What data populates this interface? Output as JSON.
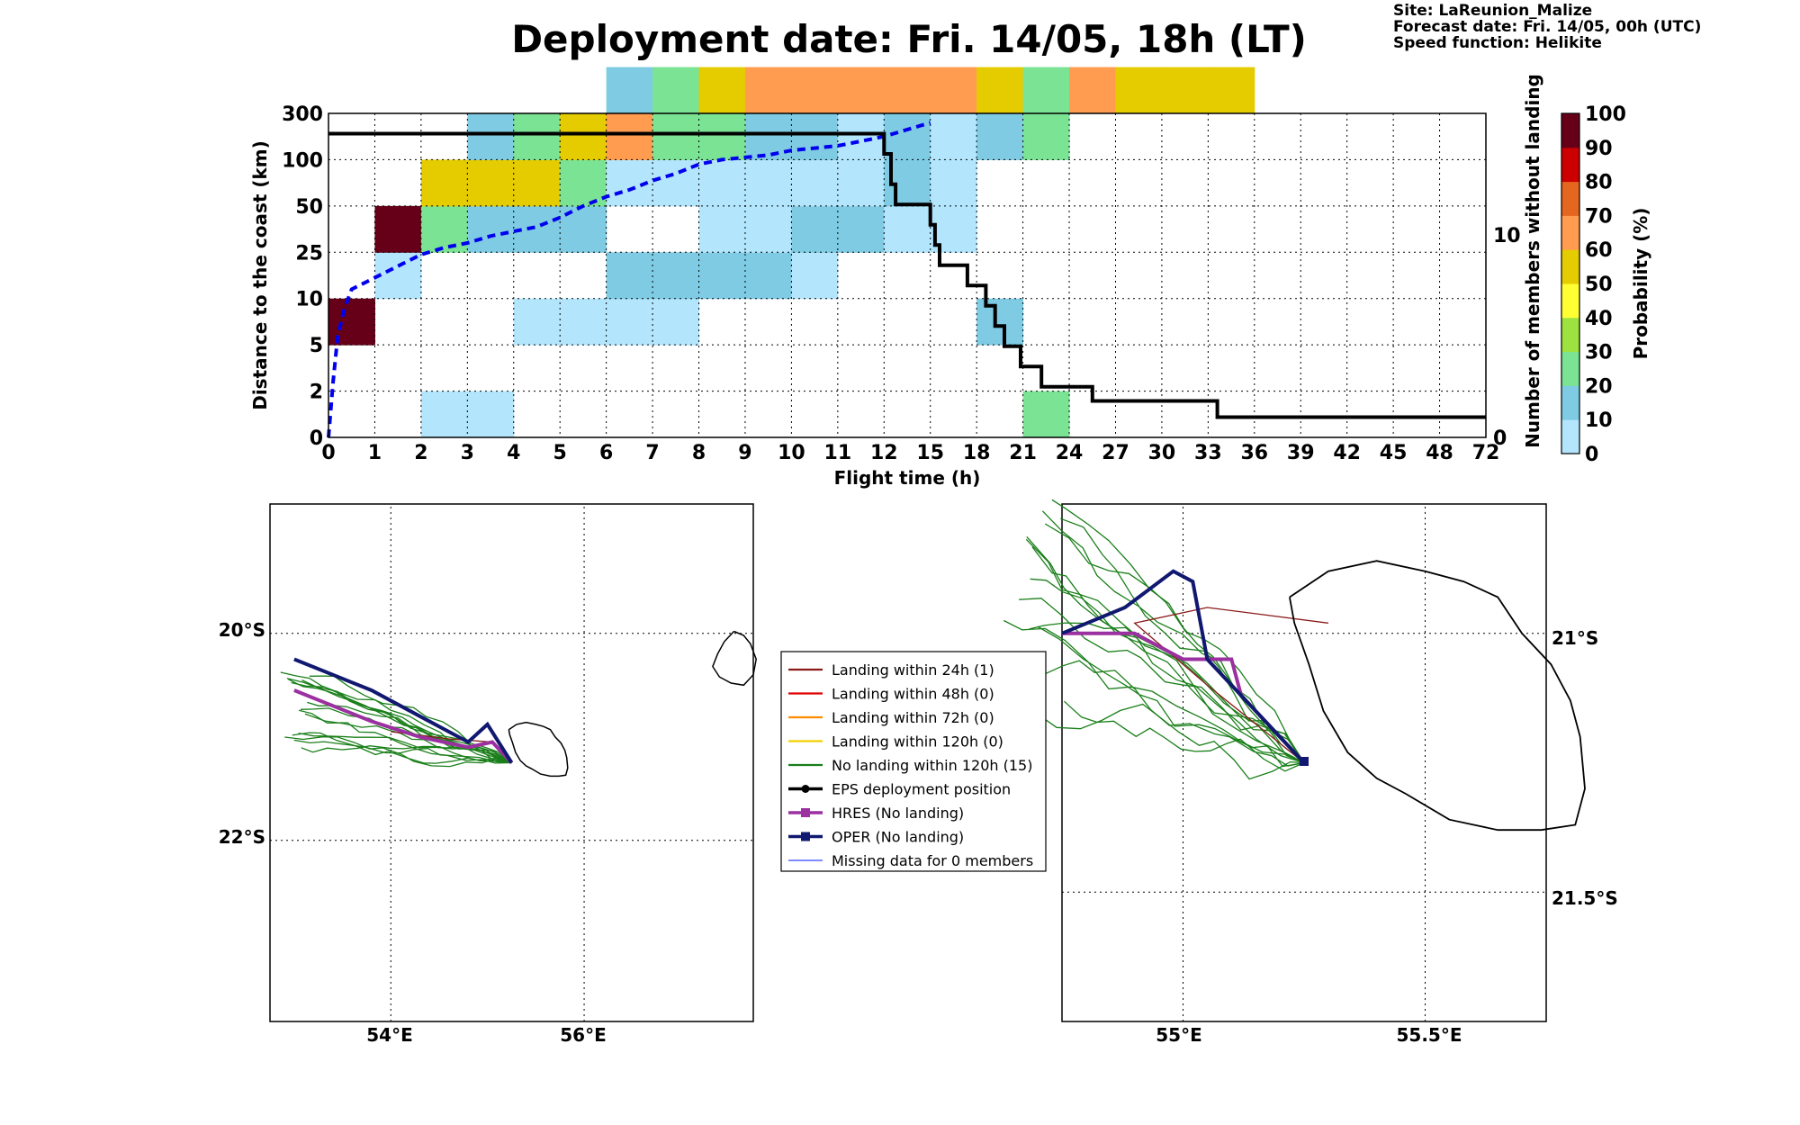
{
  "header": {
    "title": "Deployment date: Fri. 14/05, 18h (LT)",
    "info": [
      "Site: LaReunion_Malize",
      "Forecast date: Fri. 14/05, 00h (UTC)",
      "Speed function: Helikite"
    ]
  },
  "colors": {
    "scale": [
      "#b3e5fc",
      "#7ecbe3",
      "#7be394",
      "#9de23f",
      "#ffff33",
      "#e5cc00",
      "#ff9c50",
      "#e5661e",
      "#cc0000",
      "#660018"
    ],
    "median_line": "#0000ee",
    "members_line": "#000000",
    "land": "#000000"
  },
  "chart_data": [
    {
      "type": "heatmap",
      "xlabel": "Flight time (h)",
      "ylabel": "Distance to the coast (km)",
      "y2label": "Number of members without landing",
      "x_ticks": [
        "0",
        "1",
        "2",
        "3",
        "4",
        "5",
        "6",
        "7",
        "8",
        "9",
        "10",
        "11",
        "12",
        "15",
        "18",
        "21",
        "24",
        "27",
        "30",
        "33",
        "36",
        "39",
        "42",
        "45",
        "48",
        "72"
      ],
      "y_ticks": [
        "0",
        "2",
        "5",
        "10",
        "25",
        "50",
        "100",
        "300"
      ],
      "y2_ticks": [
        "0",
        "10"
      ],
      "y2_range": [
        0,
        16
      ],
      "colorbar": {
        "label": "Probability (%)",
        "ticks": [
          "0",
          "10",
          "20",
          "30",
          "40",
          "50",
          "60",
          "70",
          "80",
          "90",
          "100"
        ]
      },
      "cells": [
        {
          "x": 0,
          "y": 2,
          "p": 95
        },
        {
          "x": 1,
          "y": 3,
          "p": 5
        },
        {
          "x": 1,
          "y": 4,
          "p": 95
        },
        {
          "x": 2,
          "y": 0,
          "p": 5
        },
        {
          "x": 2,
          "y": 4,
          "p": 25
        },
        {
          "x": 2,
          "y": 5,
          "p": 55
        },
        {
          "x": 3,
          "y": 0,
          "p": 5
        },
        {
          "x": 3,
          "y": 4,
          "p": 15
        },
        {
          "x": 3,
          "y": 5,
          "p": 55
        },
        {
          "x": 3,
          "y": 6,
          "p": 15
        },
        {
          "x": 4,
          "y": 2,
          "p": 5
        },
        {
          "x": 4,
          "y": 4,
          "p": 15
        },
        {
          "x": 4,
          "y": 5,
          "p": 55
        },
        {
          "x": 4,
          "y": 6,
          "p": 20
        },
        {
          "x": 5,
          "y": 2,
          "p": 5
        },
        {
          "x": 5,
          "y": 4,
          "p": 15
        },
        {
          "x": 5,
          "y": 5,
          "p": 20
        },
        {
          "x": 5,
          "y": 6,
          "p": 55
        },
        {
          "x": 6,
          "y": 2,
          "p": 5
        },
        {
          "x": 6,
          "y": 3,
          "p": 15
        },
        {
          "x": 6,
          "y": 5,
          "p": 5
        },
        {
          "x": 6,
          "y": 6,
          "p": 60
        },
        {
          "x": 6,
          "y": 7,
          "p": 15
        },
        {
          "x": 7,
          "y": 2,
          "p": 5
        },
        {
          "x": 7,
          "y": 3,
          "p": 15
        },
        {
          "x": 7,
          "y": 5,
          "p": 5
        },
        {
          "x": 7,
          "y": 6,
          "p": 25
        },
        {
          "x": 7,
          "y": 7,
          "p": 25
        },
        {
          "x": 8,
          "y": 3,
          "p": 15
        },
        {
          "x": 8,
          "y": 4,
          "p": 5
        },
        {
          "x": 8,
          "y": 5,
          "p": 5
        },
        {
          "x": 8,
          "y": 6,
          "p": 20
        },
        {
          "x": 8,
          "y": 7,
          "p": 55
        },
        {
          "x": 9,
          "y": 3,
          "p": 15
        },
        {
          "x": 9,
          "y": 4,
          "p": 5
        },
        {
          "x": 9,
          "y": 5,
          "p": 5
        },
        {
          "x": 9,
          "y": 6,
          "p": 15
        },
        {
          "x": 9,
          "y": 7,
          "p": 60
        },
        {
          "x": 10,
          "y": 3,
          "p": 5
        },
        {
          "x": 10,
          "y": 4,
          "p": 15
        },
        {
          "x": 10,
          "y": 5,
          "p": 5
        },
        {
          "x": 10,
          "y": 6,
          "p": 15
        },
        {
          "x": 10,
          "y": 7,
          "p": 60
        },
        {
          "x": 11,
          "y": 4,
          "p": 15
        },
        {
          "x": 11,
          "y": 5,
          "p": 5
        },
        {
          "x": 11,
          "y": 6,
          "p": 5
        },
        {
          "x": 11,
          "y": 7,
          "p": 60
        },
        {
          "x": 12,
          "y": 4,
          "p": 5
        },
        {
          "x": 12,
          "y": 5,
          "p": 15
        },
        {
          "x": 12,
          "y": 6,
          "p": 15
        },
        {
          "x": 12,
          "y": 7,
          "p": 60
        },
        {
          "x": 13,
          "y": 4,
          "p": 5
        },
        {
          "x": 13,
          "y": 5,
          "p": 5
        },
        {
          "x": 13,
          "y": 6,
          "p": 5
        },
        {
          "x": 13,
          "y": 7,
          "p": 65
        },
        {
          "x": 14,
          "y": 2,
          "p": 15
        },
        {
          "x": 14,
          "y": 6,
          "p": 15
        },
        {
          "x": 14,
          "y": 7,
          "p": 55
        },
        {
          "x": 15,
          "y": 0,
          "p": 20
        },
        {
          "x": 15,
          "y": 6,
          "p": 20
        },
        {
          "x": 15,
          "y": 7,
          "p": 20
        },
        {
          "x": 16,
          "y": 7,
          "p": 60
        },
        {
          "x": 17,
          "y": 7,
          "p": 55
        },
        {
          "x": 18,
          "y": 7,
          "p": 55
        },
        {
          "x": 19,
          "y": 7,
          "p": 55
        }
      ],
      "median_curve": [
        [
          0,
          0
        ],
        [
          0.1,
          1.2
        ],
        [
          0.2,
          2.2
        ],
        [
          0.35,
          2.8
        ],
        [
          0.5,
          3.2
        ],
        [
          1,
          3.45
        ],
        [
          1.6,
          3.75
        ],
        [
          2,
          3.95
        ],
        [
          2.5,
          4.1
        ],
        [
          3,
          4.2
        ],
        [
          3.5,
          4.35
        ],
        [
          4,
          4.45
        ],
        [
          4.5,
          4.55
        ],
        [
          5,
          4.75
        ],
        [
          5.5,
          5.0
        ],
        [
          6,
          5.2
        ],
        [
          6.5,
          5.35
        ],
        [
          7,
          5.55
        ],
        [
          7.5,
          5.7
        ],
        [
          8,
          5.9
        ],
        [
          8.5,
          6.0
        ],
        [
          9,
          6.05
        ],
        [
          9.5,
          6.1
        ],
        [
          10,
          6.2
        ],
        [
          10.5,
          6.25
        ],
        [
          11,
          6.3
        ],
        [
          11.5,
          6.4
        ],
        [
          12,
          6.5
        ],
        [
          12.5,
          6.65
        ],
        [
          13,
          6.8
        ]
      ],
      "members_step": [
        [
          0,
          15
        ],
        [
          12,
          15
        ],
        [
          12,
          14
        ],
        [
          12.15,
          14
        ],
        [
          12.15,
          12.5
        ],
        [
          12.25,
          12.5
        ],
        [
          12.25,
          11.5
        ],
        [
          13,
          11.5
        ],
        [
          13,
          10.5
        ],
        [
          13.1,
          10.5
        ],
        [
          13.1,
          9.5
        ],
        [
          13.2,
          9.5
        ],
        [
          13.2,
          8.5
        ],
        [
          13.8,
          8.5
        ],
        [
          13.8,
          7.5
        ],
        [
          14.2,
          7.5
        ],
        [
          14.2,
          6.5
        ],
        [
          14.4,
          6.5
        ],
        [
          14.4,
          5.5
        ],
        [
          14.6,
          5.5
        ],
        [
          14.6,
          4.5
        ],
        [
          14.95,
          4.5
        ],
        [
          14.95,
          3.5
        ],
        [
          15.4,
          3.5
        ],
        [
          15.4,
          2.5
        ],
        [
          16.5,
          2.5
        ],
        [
          16.5,
          1.8
        ],
        [
          19.2,
          1.8
        ],
        [
          19.2,
          1.0
        ],
        [
          25,
          1.0
        ]
      ]
    },
    {
      "type": "map",
      "lon_range": [
        52.75,
        57.75
      ],
      "lat_range": [
        -23.75,
        -18.75
      ],
      "x_ticks": [
        "54°E",
        "56°E"
      ],
      "y_ticks": [
        "20°S",
        "22°S"
      ],
      "deployment": [
        55.25,
        -21.25
      ]
    },
    {
      "type": "map",
      "lon_range": [
        54.75,
        55.75
      ],
      "lat_range": [
        -21.75,
        -20.75
      ],
      "x_ticks": [
        "55°E",
        "55.5°E"
      ],
      "y_ticks": [
        "21°S",
        "21.5°S"
      ],
      "deployment": [
        55.25,
        -21.25
      ]
    }
  ],
  "legend": {
    "items": [
      {
        "label": "Landing within 24h (1)",
        "color": "#8b1a1a",
        "kind": "line"
      },
      {
        "label": "Landing within 48h (0)",
        "color": "#e00000",
        "kind": "line"
      },
      {
        "label": "Landing within 72h (0)",
        "color": "#ff8c00",
        "kind": "line"
      },
      {
        "label": "Landing within 120h (0)",
        "color": "#f0d000",
        "kind": "line"
      },
      {
        "label": "No landing within 120h (15)",
        "color": "#1a7f1a",
        "kind": "line"
      },
      {
        "label": "EPS deployment position",
        "color": "#000000",
        "kind": "dot"
      },
      {
        "label": "HRES (No landing)",
        "color": "#9b30a0",
        "kind": "square"
      },
      {
        "label": "OPER (No landing)",
        "color": "#101870",
        "kind": "square"
      },
      {
        "label": "Missing data for 0 members",
        "color": "#3344ff",
        "kind": "thin"
      }
    ]
  }
}
